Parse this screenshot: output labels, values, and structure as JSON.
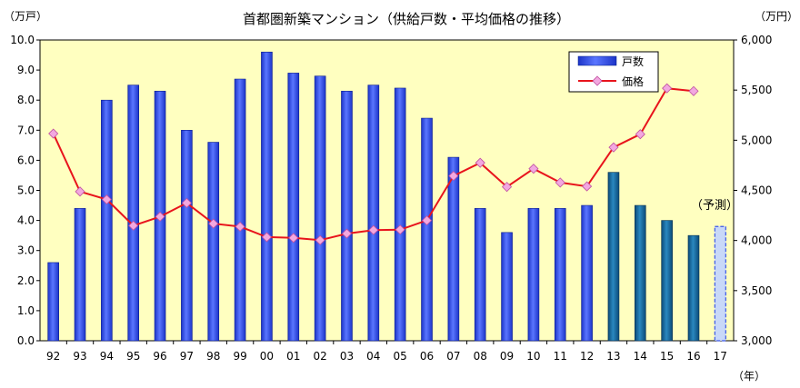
{
  "chart_data": {
    "type": "bar+line",
    "title": "首都圏新築マンション（供給戸数・平均価格の推移）",
    "left_unit": "（万戸）",
    "right_unit": "（万円）",
    "x_unit": "（年）",
    "forecast_label": "（予測）",
    "categories": [
      "92",
      "93",
      "94",
      "95",
      "96",
      "97",
      "98",
      "99",
      "00",
      "01",
      "02",
      "03",
      "04",
      "05",
      "06",
      "07",
      "08",
      "09",
      "10",
      "11",
      "12",
      "13",
      "14",
      "15",
      "16",
      "17"
    ],
    "left_axis": {
      "min": 0,
      "max": 10,
      "step": 1,
      "ticks": [
        "0.0",
        "1.0",
        "2.0",
        "3.0",
        "4.0",
        "5.0",
        "6.0",
        "7.0",
        "8.0",
        "9.0",
        "10.0"
      ]
    },
    "right_axis": {
      "min": 3000,
      "max": 6000,
      "step": 500,
      "ticks": [
        "3,000",
        "3,500",
        "4,000",
        "4,500",
        "5,000",
        "5,500",
        "6,000"
      ]
    },
    "series": [
      {
        "name": "戸数",
        "type": "bar",
        "axis": "left",
        "values": [
          2.6,
          4.4,
          8.0,
          8.5,
          8.3,
          7.0,
          6.6,
          8.7,
          9.6,
          8.9,
          8.8,
          8.3,
          8.5,
          8.4,
          7.4,
          6.1,
          4.4,
          3.6,
          4.4,
          4.4,
          4.5,
          5.6,
          4.5,
          4.0,
          3.5,
          3.8
        ]
      },
      {
        "name": "価格",
        "type": "line",
        "axis": "right",
        "values": [
          5066,
          4488,
          4409,
          4148,
          4238,
          4374,
          4168,
          4138,
          4034,
          4026,
          4003,
          4069,
          4104,
          4108,
          4200,
          4644,
          4775,
          4535,
          4716,
          4578,
          4540,
          4929,
          5060,
          5518,
          5490,
          null
        ]
      }
    ],
    "bar_colors": {
      "actual": "#3a56e8",
      "recent": "#1a6a9c",
      "forecast": "#c8d8f8"
    },
    "line_color": "#e8141c",
    "marker_color": "#f2a8e0",
    "plot_bg": "#ffffc0",
    "legend_position": "top-right"
  }
}
